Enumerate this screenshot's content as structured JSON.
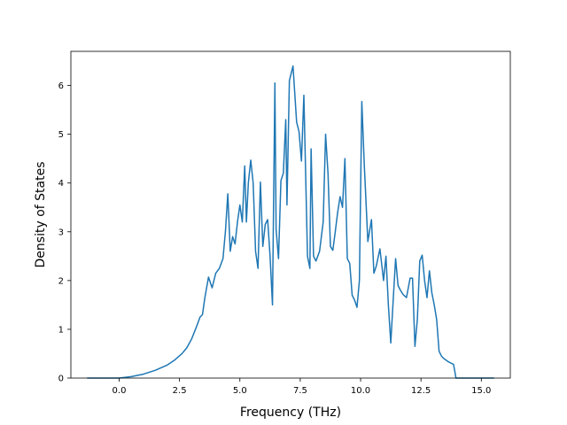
{
  "chart_data": {
    "type": "line",
    "title": "",
    "xlabel": "Frequency (THz)",
    "ylabel": "Density of States",
    "xlim": [
      -2.0,
      16.2
    ],
    "ylim": [
      0,
      6.7
    ],
    "xticks": [
      0.0,
      2.5,
      5.0,
      7.5,
      10.0,
      12.5,
      15.0
    ],
    "xtick_labels": [
      "0.0",
      "2.5",
      "5.0",
      "7.5",
      "10.0",
      "12.5",
      "15.0"
    ],
    "yticks": [
      0,
      1,
      2,
      3,
      4,
      5,
      6
    ],
    "ytick_labels": [
      "0",
      "1",
      "2",
      "3",
      "4",
      "5",
      "6"
    ],
    "grid": false,
    "series": [
      {
        "name": "",
        "color": "#1f77b4",
        "x": [
          -1.3,
          -0.5,
          0.0,
          0.5,
          1.0,
          1.5,
          2.0,
          2.3,
          2.6,
          2.8,
          3.0,
          3.2,
          3.35,
          3.45,
          3.55,
          3.7,
          3.85,
          4.0,
          4.15,
          4.3,
          4.4,
          4.5,
          4.6,
          4.7,
          4.8,
          4.9,
          5.0,
          5.1,
          5.2,
          5.27,
          5.35,
          5.45,
          5.55,
          5.65,
          5.75,
          5.85,
          5.95,
          6.05,
          6.15,
          6.25,
          6.35,
          6.45,
          6.5,
          6.6,
          6.7,
          6.8,
          6.9,
          6.95,
          7.05,
          7.2,
          7.35,
          7.45,
          7.55,
          7.65,
          7.8,
          7.9,
          7.95,
          8.05,
          8.15,
          8.3,
          8.45,
          8.55,
          8.65,
          8.75,
          8.85,
          8.95,
          9.05,
          9.15,
          9.25,
          9.35,
          9.45,
          9.55,
          9.65,
          9.75,
          9.85,
          9.95,
          10.05,
          10.15,
          10.3,
          10.45,
          10.55,
          10.65,
          10.8,
          10.95,
          11.05,
          11.15,
          11.25,
          11.35,
          11.45,
          11.55,
          11.65,
          11.75,
          11.9,
          12.05,
          12.15,
          12.25,
          12.35,
          12.45,
          12.55,
          12.65,
          12.75,
          12.85,
          12.95,
          13.05,
          13.15,
          13.25,
          13.35,
          13.45,
          13.65,
          13.85,
          13.95,
          14.05,
          14.3,
          15.5
        ],
        "y": [
          0.0,
          0.0,
          0.0,
          0.03,
          0.08,
          0.16,
          0.27,
          0.37,
          0.5,
          0.62,
          0.8,
          1.05,
          1.25,
          1.3,
          1.65,
          2.07,
          1.85,
          2.15,
          2.25,
          2.45,
          3.0,
          3.78,
          2.6,
          2.9,
          2.75,
          3.2,
          3.55,
          3.2,
          4.35,
          3.2,
          4.0,
          4.47,
          4.0,
          2.6,
          2.25,
          4.02,
          2.7,
          3.15,
          3.25,
          2.5,
          1.5,
          6.05,
          3.05,
          2.45,
          4.05,
          4.2,
          5.3,
          3.55,
          6.1,
          6.4,
          5.25,
          5.05,
          4.45,
          5.8,
          2.5,
          2.25,
          4.7,
          2.5,
          2.4,
          2.6,
          3.2,
          5.0,
          4.2,
          2.7,
          2.62,
          3.0,
          3.4,
          3.72,
          3.5,
          4.5,
          2.45,
          2.35,
          1.7,
          1.6,
          1.45,
          2.0,
          5.67,
          4.4,
          2.8,
          3.25,
          2.15,
          2.3,
          2.65,
          2.0,
          2.5,
          1.5,
          0.72,
          1.6,
          2.45,
          1.9,
          1.8,
          1.72,
          1.65,
          2.05,
          2.05,
          0.65,
          1.2,
          2.4,
          2.52,
          2.0,
          1.65,
          2.2,
          1.75,
          1.5,
          1.2,
          0.55,
          0.45,
          0.4,
          0.33,
          0.28,
          0.0,
          0.0,
          0.0,
          0.0
        ]
      }
    ]
  }
}
